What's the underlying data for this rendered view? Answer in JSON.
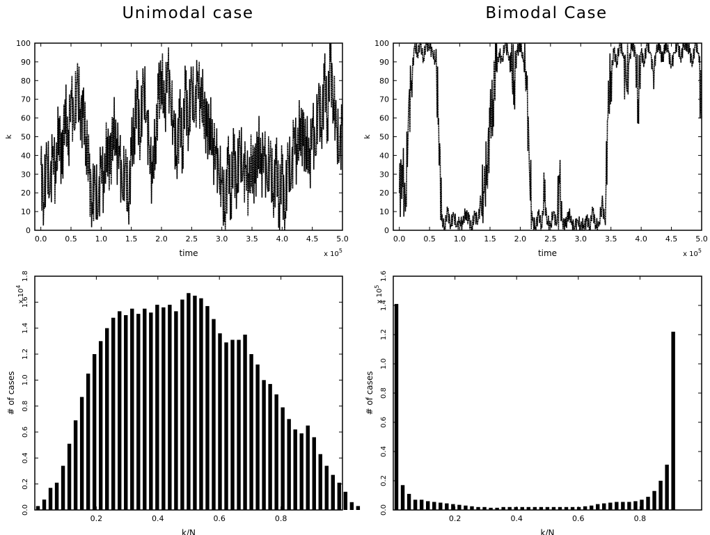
{
  "figure": {
    "left_title": "Unimodal case",
    "right_title": "Bimodal Case"
  },
  "chart_data": [
    {
      "id": "unimodal-timeseries",
      "type": "line",
      "xlabel": "time",
      "ylabel": "k",
      "x_multiplier": "x 10",
      "x_multiplier_exp": "5",
      "xlim": [
        -0.1,
        5.0
      ],
      "ylim": [
        0,
        100
      ],
      "xticks": [
        "0.0",
        "0.5",
        "1.0",
        "1.5",
        "2.0",
        "2.5",
        "3.0",
        "3.5",
        "4.0",
        "4.5",
        "5.0"
      ],
      "yticks": [
        "0",
        "10",
        "20",
        "30",
        "40",
        "50",
        "60",
        "70",
        "80",
        "90",
        "100"
      ],
      "series": [
        {
          "x": [
            0.0,
            0.05,
            0.1,
            0.15,
            0.2,
            0.25,
            0.3,
            0.35,
            0.4,
            0.45,
            0.5,
            0.55,
            0.6,
            0.65,
            0.7,
            0.75,
            0.8,
            0.85,
            0.9,
            0.95,
            1.0,
            1.05,
            1.1,
            1.15,
            1.2,
            1.25,
            1.3,
            1.35,
            1.4,
            1.45,
            1.5,
            1.55,
            1.6,
            1.65,
            1.7,
            1.75,
            1.8,
            1.85,
            1.9,
            1.95,
            2.0,
            2.05,
            2.1,
            2.15,
            2.2,
            2.25,
            2.3,
            2.35,
            2.4,
            2.45,
            2.5,
            2.55,
            2.6,
            2.65,
            2.7,
            2.75,
            2.8,
            2.85,
            2.9,
            2.95,
            3.0,
            3.05,
            3.1,
            3.15,
            3.2,
            3.25,
            3.3,
            3.35,
            3.4,
            3.45,
            3.5,
            3.55,
            3.6,
            3.65,
            3.7,
            3.75,
            3.8,
            3.85,
            3.9,
            3.95,
            4.0,
            4.05,
            4.1,
            4.15,
            4.2,
            4.25,
            4.3,
            4.35,
            4.4,
            4.45,
            4.5,
            4.55,
            4.6,
            4.65,
            4.7,
            4.75,
            4.8,
            4.85,
            4.9,
            4.95,
            5.0
          ],
          "y": [
            35,
            15,
            40,
            20,
            45,
            25,
            60,
            30,
            70,
            40,
            75,
            55,
            80,
            65,
            60,
            50,
            30,
            15,
            25,
            10,
            40,
            20,
            50,
            30,
            60,
            40,
            45,
            20,
            35,
            15,
            40,
            55,
            70,
            50,
            80,
            60,
            45,
            25,
            50,
            70,
            85,
            60,
            90,
            70,
            55,
            40,
            60,
            45,
            75,
            55,
            80,
            60,
            85,
            65,
            70,
            50,
            60,
            40,
            45,
            30,
            25,
            10,
            35,
            20,
            40,
            25,
            45,
            30,
            35,
            20,
            40,
            25,
            50,
            30,
            45,
            25,
            40,
            20,
            35,
            15,
            30,
            10,
            40,
            25,
            55,
            35,
            60,
            45,
            50,
            30,
            60,
            40,
            70,
            55,
            80,
            60,
            90,
            70,
            55,
            40,
            60
          ]
        }
      ]
    },
    {
      "id": "bimodal-timeseries",
      "type": "line",
      "xlabel": "time",
      "ylabel": "k",
      "x_multiplier": "x 10",
      "x_multiplier_exp": "5",
      "xlim": [
        -0.1,
        5.0
      ],
      "ylim": [
        0,
        100
      ],
      "xticks": [
        "0.0",
        "0.5",
        "1.0",
        "1.5",
        "2.0",
        "2.5",
        "3.0",
        "3.5",
        "4.0",
        "4.5",
        "5.0"
      ],
      "yticks": [
        "0",
        "10",
        "20",
        "30",
        "40",
        "50",
        "60",
        "70",
        "80",
        "90",
        "100"
      ],
      "series": [
        {
          "x": [
            0.0,
            0.05,
            0.1,
            0.15,
            0.2,
            0.25,
            0.3,
            0.35,
            0.4,
            0.45,
            0.5,
            0.55,
            0.6,
            0.65,
            0.7,
            0.75,
            0.8,
            0.85,
            0.9,
            0.95,
            1.0,
            1.05,
            1.1,
            1.15,
            1.2,
            1.25,
            1.3,
            1.35,
            1.4,
            1.45,
            1.5,
            1.55,
            1.6,
            1.65,
            1.7,
            1.75,
            1.8,
            1.85,
            1.9,
            1.95,
            2.0,
            2.05,
            2.1,
            2.15,
            2.2,
            2.25,
            2.3,
            2.35,
            2.4,
            2.45,
            2.5,
            2.55,
            2.6,
            2.65,
            2.7,
            2.75,
            2.8,
            2.85,
            2.9,
            2.95,
            3.0,
            3.05,
            3.1,
            3.15,
            3.2,
            3.25,
            3.3,
            3.35,
            3.4,
            3.45,
            3.5,
            3.55,
            3.6,
            3.65,
            3.7,
            3.75,
            3.8,
            3.85,
            3.9,
            3.95,
            4.0,
            4.05,
            4.1,
            4.15,
            4.2,
            4.25,
            4.3,
            4.35,
            4.4,
            4.45,
            4.5,
            4.55,
            4.6,
            4.65,
            4.7,
            4.75,
            4.8,
            4.85,
            4.9,
            4.95,
            5.0
          ],
          "y": [
            20,
            35,
            10,
            60,
            80,
            98,
            95,
            100,
            92,
            100,
            98,
            95,
            90,
            60,
            5,
            2,
            10,
            3,
            8,
            2,
            5,
            3,
            10,
            5,
            2,
            8,
            5,
            15,
            20,
            35,
            55,
            70,
            85,
            95,
            90,
            100,
            95,
            85,
            80,
            95,
            100,
            90,
            85,
            35,
            5,
            2,
            8,
            3,
            15,
            5,
            2,
            10,
            3,
            25,
            5,
            2,
            10,
            3,
            2,
            5,
            2,
            3,
            5,
            2,
            10,
            3,
            2,
            15,
            5,
            60,
            85,
            95,
            90,
            100,
            95,
            80,
            90,
            100,
            95,
            70,
            95,
            90,
            100,
            95,
            85,
            95,
            100,
            90,
            100,
            95,
            88,
            95,
            100,
            92,
            98,
            100,
            95,
            90,
            100,
            95,
            60
          ]
        }
      ]
    },
    {
      "id": "unimodal-histogram",
      "type": "bar",
      "xlabel": "k/N",
      "ylabel": "# of cases",
      "y_multiplier": "x 10",
      "y_multiplier_exp": "4",
      "xlim": [
        0,
        1
      ],
      "ylim": [
        0,
        1.8
      ],
      "xticks": [
        "0.2",
        "0.4",
        "0.6",
        "0.8"
      ],
      "yticks": [
        "0.0",
        "0.2",
        "0.4",
        "0.6",
        "0.8",
        "1.0",
        "1.2",
        "1.4",
        "1.6",
        "1.8"
      ],
      "bin_width": 0.0204,
      "values": [
        0.03,
        0.08,
        0.17,
        0.21,
        0.34,
        0.51,
        0.69,
        0.87,
        1.05,
        1.2,
        1.3,
        1.4,
        1.48,
        1.53,
        1.5,
        1.55,
        1.51,
        1.55,
        1.52,
        1.58,
        1.56,
        1.58,
        1.53,
        1.62,
        1.67,
        1.65,
        1.63,
        1.57,
        1.47,
        1.36,
        1.29,
        1.31,
        1.31,
        1.35,
        1.2,
        1.12,
        1.0,
        0.97,
        0.89,
        0.79,
        0.7,
        0.62,
        0.59,
        0.65,
        0.56,
        0.43,
        0.34,
        0.27,
        0.21,
        0.14,
        0.06,
        0.03
      ]
    },
    {
      "id": "bimodal-histogram",
      "type": "bar",
      "xlabel": "k/N",
      "ylabel": "# of cases",
      "y_multiplier": "x 10",
      "y_multiplier_exp": "5",
      "xlim": [
        0,
        1
      ],
      "ylim": [
        0,
        1.6
      ],
      "xticks": [
        "0.2",
        "0.4",
        "0.6",
        "0.8"
      ],
      "yticks": [
        "0.0",
        "0.2",
        "0.4",
        "0.6",
        "0.8",
        "1.0",
        "1.2",
        "1.4",
        "1.6"
      ],
      "bin_width": 0.0204,
      "values": [
        1.41,
        0.17,
        0.11,
        0.07,
        0.07,
        0.06,
        0.055,
        0.05,
        0.045,
        0.04,
        0.035,
        0.03,
        0.025,
        0.02,
        0.02,
        0.015,
        0.015,
        0.02,
        0.02,
        0.02,
        0.02,
        0.02,
        0.02,
        0.02,
        0.02,
        0.02,
        0.02,
        0.02,
        0.02,
        0.02,
        0.025,
        0.03,
        0.04,
        0.045,
        0.05,
        0.055,
        0.055,
        0.055,
        0.06,
        0.07,
        0.09,
        0.13,
        0.2,
        0.31,
        1.22
      ]
    }
  ]
}
